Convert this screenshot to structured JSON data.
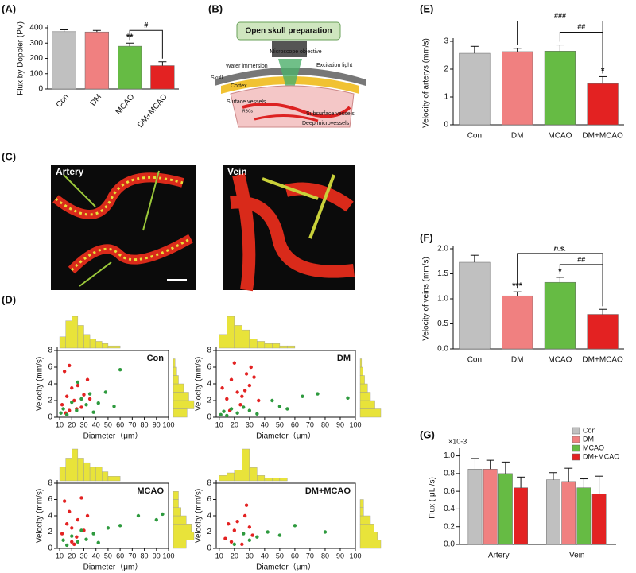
{
  "figure": {
    "panel_labels": [
      "(A)",
      "(B)",
      "(C)",
      "(D)",
      "(E)",
      "(F)",
      "(G)"
    ]
  },
  "diagram_b": {
    "title": "Open skull preparation",
    "labels": [
      "Microscope objective",
      "Water immersion",
      "Excitation light",
      "Skull",
      "Cortex",
      "Surface vessels",
      "RBCs",
      "Subsurface vessels",
      "Deep microvessels"
    ]
  },
  "image_c": {
    "labels": [
      "Artery",
      "Vein"
    ]
  },
  "chart_data": [
    {
      "type": "bar",
      "ylabel": "Flux by Doppler (PV)",
      "categories": [
        "Con",
        "DM",
        "MCAO",
        "DM+MCAO"
      ],
      "values": [
        375,
        373,
        280,
        153
      ],
      "errors": [
        12,
        10,
        20,
        25
      ],
      "colors": [
        "#c0c0c0",
        "#f08080",
        "#66bb44",
        "#e32222"
      ],
      "ylim": [
        0,
        400
      ],
      "yticks": [
        0,
        100,
        200,
        300,
        400
      ],
      "stars": [
        {
          "index": 2,
          "text": "**"
        }
      ],
      "brackets": [
        {
          "from": 2,
          "to": 3,
          "text": "#"
        }
      ]
    },
    {
      "type": "bar",
      "ylabel": "Velocity of arterys (mm/s)",
      "categories": [
        "Con",
        "DM",
        "MCAO",
        "DM+MCAO"
      ],
      "values": [
        2.57,
        2.63,
        2.65,
        1.48
      ],
      "errors": [
        0.25,
        0.12,
        0.22,
        0.25
      ],
      "colors": [
        "#c0c0c0",
        "#f08080",
        "#66bb44",
        "#e32222"
      ],
      "ylim": [
        0,
        3
      ],
      "yticks": [
        0,
        1,
        2,
        3
      ],
      "stars": [
        {
          "index": 3,
          "text": "*"
        }
      ],
      "brackets": [
        {
          "from": 2,
          "to": 3,
          "text": "##"
        },
        {
          "from": 1,
          "to": 3,
          "text": "###"
        }
      ]
    },
    {
      "type": "bar",
      "ylabel": "Velocity of veins (mm/s)",
      "categories": [
        "Con",
        "DM",
        "MCAO",
        "DM+MCAO"
      ],
      "values": [
        1.73,
        1.06,
        1.33,
        0.69
      ],
      "errors": [
        0.14,
        0.08,
        0.1,
        0.1
      ],
      "colors": [
        "#c0c0c0",
        "#f08080",
        "#66bb44",
        "#e32222"
      ],
      "ylim": [
        0,
        2
      ],
      "yticks": [
        {
          "value": 0,
          "label": "0.0"
        },
        {
          "value": 0.5,
          "label": "0.5"
        },
        {
          "value": 1,
          "label": "1.0"
        },
        {
          "value": 1.5,
          "label": "1.5"
        },
        {
          "value": 2,
          "label": "2.0"
        }
      ],
      "stars": [
        {
          "index": 1,
          "text": "***"
        },
        {
          "index": 2,
          "text": "*"
        }
      ],
      "brackets": [
        {
          "from": 2,
          "to": 3,
          "text": "##"
        },
        {
          "from": 1,
          "to": 3,
          "text": "n.s."
        }
      ]
    },
    {
      "type": "grouped_bar",
      "ylabel": "Flux ( μL /s)",
      "scale_label": "×10-3",
      "categories": [
        "Artery",
        "Vein"
      ],
      "series": [
        {
          "name": "Con",
          "color": "#c0c0c0",
          "values": [
            0.85,
            0.73
          ],
          "errors": [
            0.12,
            0.08
          ]
        },
        {
          "name": "DM",
          "color": "#f08080",
          "values": [
            0.85,
            0.71
          ],
          "errors": [
            0.1,
            0.15
          ]
        },
        {
          "name": "MCAO",
          "color": "#66bb44",
          "values": [
            0.8,
            0.64
          ],
          "errors": [
            0.13,
            0.1
          ]
        },
        {
          "name": "DM+MCAO",
          "color": "#e32222",
          "values": [
            0.64,
            0.57
          ],
          "errors": [
            0.12,
            0.2
          ]
        }
      ],
      "ylim": [
        0,
        1.05
      ],
      "yticks": [
        {
          "value": 0,
          "label": "0.0"
        },
        {
          "value": 0.2,
          "label": "0.2"
        },
        {
          "value": 0.4,
          "label": "0.4"
        },
        {
          "value": 0.6,
          "label": "0.6"
        },
        {
          "value": 0.8,
          "label": "0.8"
        },
        {
          "value": 1,
          "label": "1.0"
        }
      ],
      "legend": "upper right"
    },
    {
      "type": "scatter",
      "title": "Con",
      "xlabel": "Diameter（μm）",
      "ylabel": "Velocity (mm/s)",
      "xlim": [
        8,
        100
      ],
      "xticks": [
        10,
        20,
        30,
        40,
        50,
        60,
        70,
        80,
        90,
        100
      ],
      "ylim": [
        0,
        8
      ],
      "yticks": [
        0,
        2,
        4,
        6,
        8
      ],
      "series": [
        {
          "color": "#e32222",
          "x": [
            12,
            14,
            16,
            18,
            20,
            22,
            25,
            28,
            30,
            33,
            18,
            24,
            15,
            35
          ],
          "y": [
            1.5,
            5.5,
            2.5,
            0.8,
            3.5,
            2.0,
            3.8,
            1.2,
            2.7,
            4.5,
            6.2,
            1.0,
            0.5,
            2.2
          ]
        },
        {
          "color": "#2e9a3e",
          "x": [
            11,
            13,
            16,
            20,
            24,
            28,
            32,
            38,
            42,
            48,
            55,
            60,
            25,
            35
          ],
          "y": [
            0.5,
            1.0,
            0.3,
            1.8,
            0.8,
            2.2,
            1.5,
            0.6,
            1.7,
            3.0,
            1.3,
            5.7,
            4.2,
            2.8
          ]
        }
      ],
      "x_hist": {
        "bins": [
          10,
          15,
          20,
          25,
          30,
          35,
          40,
          45,
          50,
          55,
          60
        ],
        "counts": [
          5,
          12,
          14,
          10,
          6,
          4,
          3,
          2,
          1,
          1
        ]
      },
      "y_hist": {
        "bins": [
          0,
          1,
          2,
          3,
          4,
          5,
          6,
          7,
          8
        ],
        "counts": [
          8,
          12,
          9,
          6,
          3,
          2,
          1,
          0
        ]
      },
      "hist_color": "#e8e33a"
    },
    {
      "type": "scatter",
      "title": "DM",
      "xlabel": "Diameter（μm）",
      "ylabel": "Velocity (mm/s)",
      "xlim": [
        8,
        100
      ],
      "xticks": [
        10,
        20,
        30,
        40,
        50,
        60,
        70,
        80,
        90,
        100
      ],
      "ylim": [
        0,
        8
      ],
      "yticks": [
        0,
        2,
        4,
        6,
        8
      ],
      "series": [
        {
          "color": "#e32222",
          "x": [
            12,
            15,
            18,
            20,
            22,
            25,
            28,
            30,
            33,
            36,
            24,
            17,
            27,
            31
          ],
          "y": [
            3.5,
            2.2,
            4.5,
            6.5,
            3.0,
            2.5,
            5.2,
            3.8,
            4.8,
            2.0,
            1.5,
            0.8,
            3.2,
            6.0
          ]
        },
        {
          "color": "#2e9a3e",
          "x": [
            11,
            13,
            15,
            18,
            22,
            26,
            30,
            35,
            45,
            50,
            55,
            65,
            75,
            95
          ],
          "y": [
            0.3,
            0.7,
            0.2,
            1.0,
            0.5,
            1.2,
            0.8,
            0.4,
            2.0,
            1.3,
            1.0,
            2.5,
            2.8,
            2.3
          ]
        }
      ],
      "x_hist": {
        "bins": [
          10,
          15,
          20,
          25,
          30,
          35,
          40,
          45,
          50,
          55,
          60
        ],
        "counts": [
          6,
          14,
          10,
          8,
          4,
          3,
          2,
          2,
          1,
          1
        ]
      },
      "y_hist": {
        "bins": [
          0,
          1,
          2,
          3,
          4,
          5,
          6,
          7,
          8
        ],
        "counts": [
          14,
          10,
          7,
          5,
          3,
          2,
          1,
          0
        ]
      },
      "hist_color": "#e8e33a"
    },
    {
      "type": "scatter",
      "title": "MCAO",
      "xlabel": "Diameter（μm）",
      "ylabel": "Velocity (mm/s)",
      "xlim": [
        8,
        100
      ],
      "xticks": [
        10,
        20,
        30,
        40,
        50,
        60,
        70,
        80,
        90,
        100
      ],
      "ylim": [
        0,
        8
      ],
      "yticks": [
        0,
        2,
        4,
        6,
        8
      ],
      "series": [
        {
          "color": "#e32222",
          "x": [
            12,
            14,
            16,
            18,
            20,
            22,
            25,
            28,
            30,
            33,
            20,
            24
          ],
          "y": [
            1.8,
            5.8,
            3.0,
            4.5,
            2.5,
            0.5,
            3.5,
            6.2,
            2.2,
            4.0,
            0.8,
            1.4
          ]
        },
        {
          "color": "#2e9a3e",
          "x": [
            13,
            16,
            20,
            25,
            28,
            32,
            38,
            42,
            50,
            60,
            75,
            90,
            95
          ],
          "y": [
            1.0,
            0.4,
            1.5,
            0.8,
            2.2,
            1.1,
            1.8,
            0.7,
            2.5,
            2.8,
            4.0,
            3.5,
            4.2
          ]
        }
      ],
      "x_hist": {
        "bins": [
          10,
          15,
          20,
          25,
          30,
          35,
          40,
          45,
          50,
          55,
          60
        ],
        "counts": [
          3,
          5,
          7,
          5,
          4,
          3,
          3,
          2,
          1,
          1
        ]
      },
      "y_hist": {
        "bins": [
          0,
          1,
          2,
          3,
          4,
          5,
          6,
          7,
          8
        ],
        "counts": [
          5,
          8,
          7,
          5,
          3,
          2,
          2,
          0
        ]
      },
      "hist_color": "#e8e33a"
    },
    {
      "type": "scatter",
      "title": "DM+MCAO",
      "xlabel": "Diameter（μm）",
      "ylabel": "Velocity (mm/s)",
      "xlim": [
        8,
        100
      ],
      "xticks": [
        10,
        20,
        30,
        40,
        50,
        60,
        70,
        80,
        90,
        100
      ],
      "ylim": [
        0,
        8
      ],
      "yticks": [
        0,
        2,
        4,
        6,
        8
      ],
      "series": [
        {
          "color": "#e32222",
          "x": [
            14,
            16,
            18,
            20,
            22,
            25,
            28,
            30,
            32,
            27
          ],
          "y": [
            1.2,
            3.0,
            0.8,
            2.2,
            3.3,
            0.5,
            5.3,
            2.6,
            1.6,
            4.0
          ]
        },
        {
          "color": "#2e9a3e",
          "x": [
            20,
            26,
            30,
            35,
            42,
            50,
            60,
            80
          ],
          "y": [
            0.5,
            1.8,
            1.0,
            1.4,
            2.0,
            1.6,
            2.8,
            2.0
          ]
        }
      ],
      "x_hist": {
        "bins": [
          10,
          15,
          20,
          25,
          30,
          35,
          40,
          45,
          50,
          55,
          60
        ],
        "counts": [
          2,
          3,
          4,
          12,
          5,
          2,
          1,
          1,
          1,
          0
        ]
      },
      "y_hist": {
        "bins": [
          0,
          1,
          2,
          3,
          4,
          5,
          6,
          7,
          8
        ],
        "counts": [
          6,
          5,
          4,
          3,
          1,
          1,
          0,
          0
        ]
      },
      "hist_color": "#e8e33a"
    }
  ]
}
